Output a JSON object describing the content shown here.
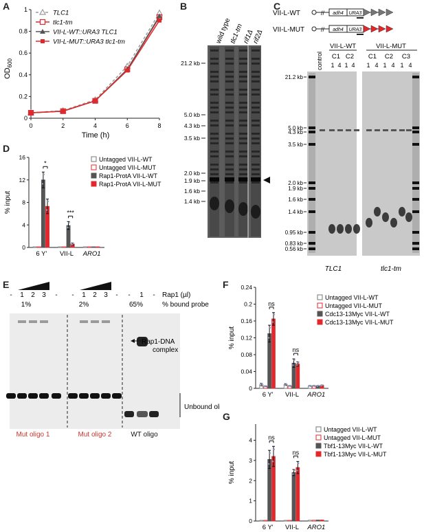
{
  "panel_labels": {
    "A": "A",
    "B": "B",
    "C": "C",
    "D": "D",
    "E": "E",
    "F": "F",
    "G": "G"
  },
  "colors": {
    "gray": "#555555",
    "red": "#e0282d",
    "light_gray": "#9a9a9a",
    "dot_blue": "#8fa5c9"
  },
  "panel_a": {
    "ylabel": "OD",
    "ylabel_sub": "600",
    "xlabel": "Time (h)",
    "legend": [
      "TLC1",
      "tlc1-tm",
      "VII-L-WT::URA3 TLC1",
      "VII-L-MUT::URA3 tlc1-tm"
    ],
    "chart_data": {
      "type": "line",
      "x": [
        0,
        2,
        4,
        6,
        8
      ],
      "xticks": [
        "0",
        "2",
        "4",
        "6",
        "8"
      ],
      "yticks": [
        "0",
        "0.2",
        "0.4",
        "0.6",
        "0.8",
        "1"
      ],
      "ylim": [
        0,
        1
      ],
      "xlim": [
        0,
        8
      ],
      "series": [
        {
          "name": "TLC1",
          "values": [
            0.05,
            0.07,
            0.17,
            0.48,
            0.97
          ]
        },
        {
          "name": "tlc1-tm",
          "values": [
            0.05,
            0.065,
            0.16,
            0.45,
            0.93
          ]
        },
        {
          "name": "VII-L-WT::URA3 TLC1",
          "values": [
            0.05,
            0.065,
            0.16,
            0.45,
            0.94
          ]
        },
        {
          "name": "VII-L-MUT::URA3 tlc1-tm",
          "values": [
            0.05,
            0.065,
            0.16,
            0.44,
            0.9
          ]
        }
      ]
    }
  },
  "panel_b": {
    "lanes": [
      "wild type",
      "tlc1-tm",
      "rif1Δ",
      "rif2Δ"
    ],
    "markers": [
      "21.2 kb",
      "5.0 kb",
      "4.3 kb",
      "3.5 kb",
      "2.0 kb",
      "1.9 kb",
      "1.6 kb",
      "1.4 kb"
    ]
  },
  "panel_c": {
    "construct_wt": "VII-L-WT",
    "construct_mut": "VII-L-MUT",
    "construct_box1": "adh4",
    "construct_box2": "URA3",
    "lane_control": "control",
    "group_wt": "VII-L-WT",
    "group_mut": "VII-L-MUT",
    "clones_wt": [
      "C1",
      "C2"
    ],
    "clones_mut": [
      "C1",
      "C2",
      "C3"
    ],
    "lane_nums": [
      "1",
      "4"
    ],
    "markers": [
      "21.2 kb",
      "5.0 kb",
      "4.3 kb",
      "3.5 kb",
      "2.0 kb",
      "1.9 kb",
      "1.6 kb",
      "1.4 kb",
      "0.95 kb",
      "0.83 kb",
      "0.56 kb"
    ],
    "bottom_left": "TLC1",
    "bottom_right": "tlc1-tm"
  },
  "panel_d": {
    "ylabel": "% input",
    "legend": [
      "Untagged VII-L-WT",
      "Untagged VII-L-MUT",
      "Rap1-ProtA VII-L-WT",
      "Rap1-ProtA VII-L-MUT"
    ],
    "sig": [
      "*",
      "***"
    ],
    "chart_data": {
      "type": "bar",
      "categories": [
        "6 Y'",
        "VII-L",
        "ARO1"
      ],
      "yticks": [
        "0",
        "4",
        "8",
        "12",
        "16"
      ],
      "ylim": [
        0,
        16
      ],
      "series": [
        {
          "name": "Untagged VII-L-WT",
          "values": [
            0.05,
            0.05,
            0.05
          ]
        },
        {
          "name": "Untagged VII-L-MUT",
          "values": [
            0.05,
            0.05,
            0.05
          ]
        },
        {
          "name": "Rap1-ProtA VII-L-WT",
          "values": [
            12.0,
            3.9,
            0.1
          ]
        },
        {
          "name": "Rap1-ProtA VII-L-MUT",
          "values": [
            7.3,
            0.6,
            0.1
          ]
        }
      ],
      "errors": [
        [
          0,
          0,
          0
        ],
        [
          0,
          0,
          0
        ],
        [
          1.4,
          0.7,
          0
        ],
        [
          1.3,
          0.2,
          0
        ]
      ]
    }
  },
  "panel_e": {
    "lane_labels_1": [
      "-",
      "1",
      "2",
      "3",
      "-"
    ],
    "lane_labels_2": [
      "-",
      "1",
      "2",
      "3",
      "-"
    ],
    "lane_labels_3": [
      "-",
      "1",
      "-"
    ],
    "rap1_label": "Rap1 (µl)",
    "bound_label": "% bound probe",
    "pct": [
      "1%",
      "2%",
      "65%"
    ],
    "complex_label": "Rap1-DNA complex",
    "complex_line1": "Rap1-DNA",
    "complex_line2": "complex",
    "unbound_label": "Unbound oligo",
    "oligos": [
      "Mut oligo 1",
      "Mut oligo 2",
      "WT oligo"
    ]
  },
  "panel_f": {
    "ylabel": "% input",
    "legend": [
      "Untagged VII-L-WT",
      "Untagged VII-L-MUT",
      "Cdc13-13Myc VII-L-WT",
      "Cdc13-13Myc VII-L-MUT"
    ],
    "sig": [
      "ns",
      "ns"
    ],
    "chart_data": {
      "type": "bar",
      "categories": [
        "6 Y'",
        "VII-L",
        "ARO1"
      ],
      "yticks": [
        "0",
        "0.04",
        "0.08",
        "0.12",
        "0.16",
        "0.2",
        "0.24"
      ],
      "ylim": [
        0,
        0.24
      ],
      "series": [
        {
          "name": "Untagged VII-L-WT",
          "values": [
            0.009,
            0.009,
            0.006
          ]
        },
        {
          "name": "Untagged VII-L-MUT",
          "values": [
            0.005,
            0.006,
            0.006
          ]
        },
        {
          "name": "Cdc13-13Myc VII-L-WT",
          "values": [
            0.13,
            0.06,
            0.006
          ]
        },
        {
          "name": "Cdc13-13Myc VII-L-MUT",
          "values": [
            0.165,
            0.058,
            0.007
          ]
        }
      ],
      "errors": [
        [
          0.003,
          0.002,
          0.001
        ],
        [
          0.001,
          0.001,
          0.001
        ],
        [
          0.02,
          0.01,
          0.001
        ],
        [
          0.015,
          0.005,
          0.001
        ]
      ]
    }
  },
  "panel_g": {
    "ylabel": "% input",
    "legend": [
      "Untagged VII-L-WT",
      "Untagged VII-L-MUT",
      "Tbf1-13Myc VII-L-WT",
      "Tbf1-13Myc VII-L-MUT"
    ],
    "sig": [
      "ns",
      "ns"
    ],
    "chart_data": {
      "type": "bar",
      "categories": [
        "6 Y'",
        "VII-L",
        "ARO1"
      ],
      "yticks": [
        "0",
        "1",
        "2",
        "3",
        "4"
      ],
      "ylim": [
        0,
        4.8
      ],
      "series": [
        {
          "name": "Untagged VII-L-WT",
          "values": [
            0.02,
            0.02,
            0.04
          ]
        },
        {
          "name": "Untagged VII-L-MUT",
          "values": [
            0.02,
            0.02,
            0.04
          ]
        },
        {
          "name": "Tbf1-13Myc VII-L-WT",
          "values": [
            3.05,
            2.4,
            0.05
          ]
        },
        {
          "name": "Tbf1-13Myc VII-L-MUT",
          "values": [
            3.2,
            2.65,
            0.05
          ]
        }
      ],
      "errors": [
        [
          0,
          0,
          0
        ],
        [
          0,
          0,
          0
        ],
        [
          0.45,
          0.15,
          0
        ],
        [
          0.5,
          0.3,
          0
        ]
      ]
    }
  }
}
